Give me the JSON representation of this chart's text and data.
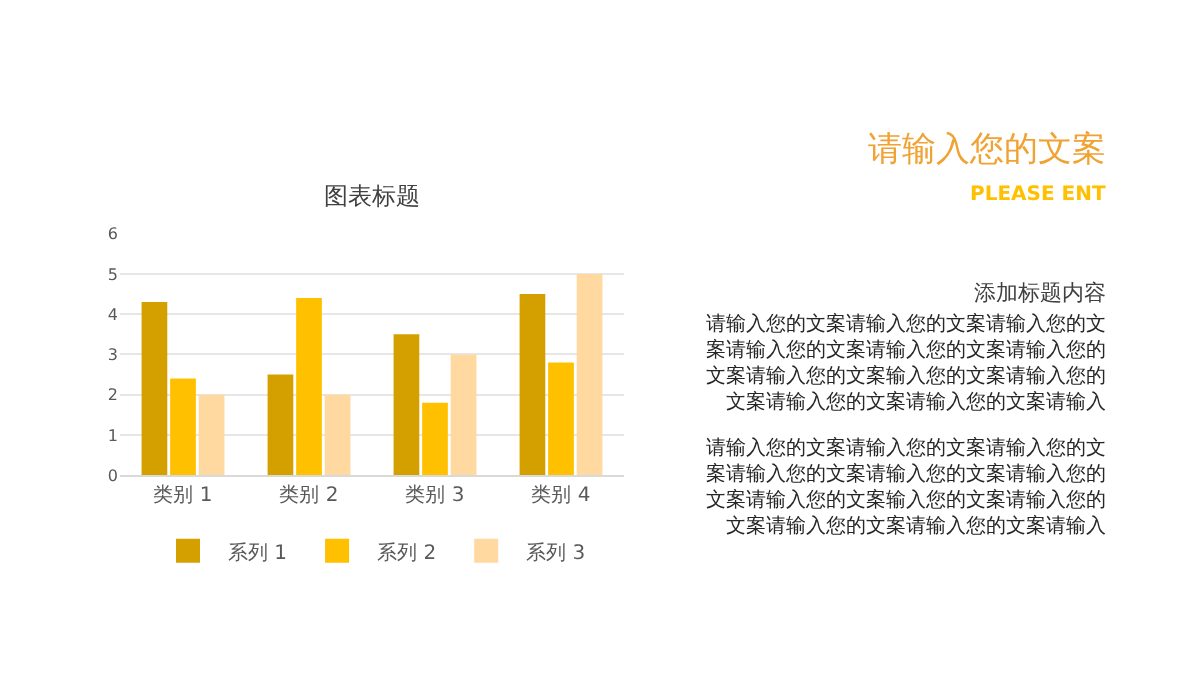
{
  "chart_data": {
    "type": "bar",
    "title": "图表标题",
    "categories": [
      "类别 1",
      "类别 2",
      "类别 3",
      "类别 4"
    ],
    "series": [
      {
        "name": "系列 1",
        "color": "#d4a000",
        "values": [
          4.3,
          2.5,
          3.5,
          4.5
        ]
      },
      {
        "name": "系列 2",
        "color": "#ffc000",
        "values": [
          2.4,
          4.4,
          1.8,
          2.8
        ]
      },
      {
        "name": "系列 3",
        "color": "#ffd9a0",
        "values": [
          2,
          2,
          3,
          5
        ]
      }
    ],
    "ylim": [
      0,
      6
    ],
    "yticks": [
      0,
      1,
      2,
      3,
      4,
      5,
      6
    ],
    "grid": "y",
    "legend": "bottom",
    "annotations": [
      "请输入您的文案",
      "PLEASE ENT",
      "添加标题内容",
      "请输入您的文案请输入您的文案请输入您的文案请输入您的文案请输入您的文案请输入您的文案请输入您的文案输入您的文案请输入您的文案请输入您的文案请输入您的文案请输入",
      "请输入您的文案请输入您的文案请输入您的文案请输入您的文案请输入您的文案请输入您的文案请输入您的文案输入您的文案请输入您的文案请输入您的文案请输入您的文案请输入"
    ]
  }
}
